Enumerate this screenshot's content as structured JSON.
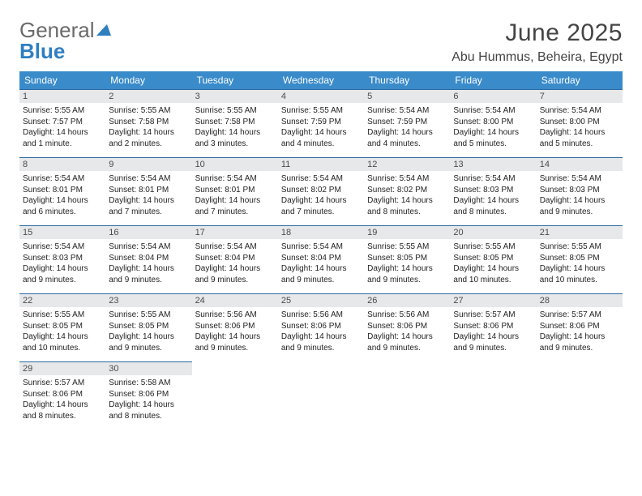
{
  "logo": {
    "general": "General",
    "blue": "Blue"
  },
  "title": "June 2025",
  "location": "Abu Hummus, Beheira, Egypt",
  "colors": {
    "header_bg": "#3a8bca",
    "header_text": "#ffffff",
    "daynum_bg": "#e7e8ea",
    "daynum_border": "#2c6aa0",
    "body_text": "#222222",
    "title_text": "#444444",
    "logo_gray": "#6a6a6a",
    "logo_blue": "#2f7fc1"
  },
  "weekdays": [
    "Sunday",
    "Monday",
    "Tuesday",
    "Wednesday",
    "Thursday",
    "Friday",
    "Saturday"
  ],
  "days": [
    {
      "n": "1",
      "sunrise": "Sunrise: 5:55 AM",
      "sunset": "Sunset: 7:57 PM",
      "day1": "Daylight: 14 hours",
      "day2": "and 1 minute."
    },
    {
      "n": "2",
      "sunrise": "Sunrise: 5:55 AM",
      "sunset": "Sunset: 7:58 PM",
      "day1": "Daylight: 14 hours",
      "day2": "and 2 minutes."
    },
    {
      "n": "3",
      "sunrise": "Sunrise: 5:55 AM",
      "sunset": "Sunset: 7:58 PM",
      "day1": "Daylight: 14 hours",
      "day2": "and 3 minutes."
    },
    {
      "n": "4",
      "sunrise": "Sunrise: 5:55 AM",
      "sunset": "Sunset: 7:59 PM",
      "day1": "Daylight: 14 hours",
      "day2": "and 4 minutes."
    },
    {
      "n": "5",
      "sunrise": "Sunrise: 5:54 AM",
      "sunset": "Sunset: 7:59 PM",
      "day1": "Daylight: 14 hours",
      "day2": "and 4 minutes."
    },
    {
      "n": "6",
      "sunrise": "Sunrise: 5:54 AM",
      "sunset": "Sunset: 8:00 PM",
      "day1": "Daylight: 14 hours",
      "day2": "and 5 minutes."
    },
    {
      "n": "7",
      "sunrise": "Sunrise: 5:54 AM",
      "sunset": "Sunset: 8:00 PM",
      "day1": "Daylight: 14 hours",
      "day2": "and 5 minutes."
    },
    {
      "n": "8",
      "sunrise": "Sunrise: 5:54 AM",
      "sunset": "Sunset: 8:01 PM",
      "day1": "Daylight: 14 hours",
      "day2": "and 6 minutes."
    },
    {
      "n": "9",
      "sunrise": "Sunrise: 5:54 AM",
      "sunset": "Sunset: 8:01 PM",
      "day1": "Daylight: 14 hours",
      "day2": "and 7 minutes."
    },
    {
      "n": "10",
      "sunrise": "Sunrise: 5:54 AM",
      "sunset": "Sunset: 8:01 PM",
      "day1": "Daylight: 14 hours",
      "day2": "and 7 minutes."
    },
    {
      "n": "11",
      "sunrise": "Sunrise: 5:54 AM",
      "sunset": "Sunset: 8:02 PM",
      "day1": "Daylight: 14 hours",
      "day2": "and 7 minutes."
    },
    {
      "n": "12",
      "sunrise": "Sunrise: 5:54 AM",
      "sunset": "Sunset: 8:02 PM",
      "day1": "Daylight: 14 hours",
      "day2": "and 8 minutes."
    },
    {
      "n": "13",
      "sunrise": "Sunrise: 5:54 AM",
      "sunset": "Sunset: 8:03 PM",
      "day1": "Daylight: 14 hours",
      "day2": "and 8 minutes."
    },
    {
      "n": "14",
      "sunrise": "Sunrise: 5:54 AM",
      "sunset": "Sunset: 8:03 PM",
      "day1": "Daylight: 14 hours",
      "day2": "and 9 minutes."
    },
    {
      "n": "15",
      "sunrise": "Sunrise: 5:54 AM",
      "sunset": "Sunset: 8:03 PM",
      "day1": "Daylight: 14 hours",
      "day2": "and 9 minutes."
    },
    {
      "n": "16",
      "sunrise": "Sunrise: 5:54 AM",
      "sunset": "Sunset: 8:04 PM",
      "day1": "Daylight: 14 hours",
      "day2": "and 9 minutes."
    },
    {
      "n": "17",
      "sunrise": "Sunrise: 5:54 AM",
      "sunset": "Sunset: 8:04 PM",
      "day1": "Daylight: 14 hours",
      "day2": "and 9 minutes."
    },
    {
      "n": "18",
      "sunrise": "Sunrise: 5:54 AM",
      "sunset": "Sunset: 8:04 PM",
      "day1": "Daylight: 14 hours",
      "day2": "and 9 minutes."
    },
    {
      "n": "19",
      "sunrise": "Sunrise: 5:55 AM",
      "sunset": "Sunset: 8:05 PM",
      "day1": "Daylight: 14 hours",
      "day2": "and 9 minutes."
    },
    {
      "n": "20",
      "sunrise": "Sunrise: 5:55 AM",
      "sunset": "Sunset: 8:05 PM",
      "day1": "Daylight: 14 hours",
      "day2": "and 10 minutes."
    },
    {
      "n": "21",
      "sunrise": "Sunrise: 5:55 AM",
      "sunset": "Sunset: 8:05 PM",
      "day1": "Daylight: 14 hours",
      "day2": "and 10 minutes."
    },
    {
      "n": "22",
      "sunrise": "Sunrise: 5:55 AM",
      "sunset": "Sunset: 8:05 PM",
      "day1": "Daylight: 14 hours",
      "day2": "and 10 minutes."
    },
    {
      "n": "23",
      "sunrise": "Sunrise: 5:55 AM",
      "sunset": "Sunset: 8:05 PM",
      "day1": "Daylight: 14 hours",
      "day2": "and 9 minutes."
    },
    {
      "n": "24",
      "sunrise": "Sunrise: 5:56 AM",
      "sunset": "Sunset: 8:06 PM",
      "day1": "Daylight: 14 hours",
      "day2": "and 9 minutes."
    },
    {
      "n": "25",
      "sunrise": "Sunrise: 5:56 AM",
      "sunset": "Sunset: 8:06 PM",
      "day1": "Daylight: 14 hours",
      "day2": "and 9 minutes."
    },
    {
      "n": "26",
      "sunrise": "Sunrise: 5:56 AM",
      "sunset": "Sunset: 8:06 PM",
      "day1": "Daylight: 14 hours",
      "day2": "and 9 minutes."
    },
    {
      "n": "27",
      "sunrise": "Sunrise: 5:57 AM",
      "sunset": "Sunset: 8:06 PM",
      "day1": "Daylight: 14 hours",
      "day2": "and 9 minutes."
    },
    {
      "n": "28",
      "sunrise": "Sunrise: 5:57 AM",
      "sunset": "Sunset: 8:06 PM",
      "day1": "Daylight: 14 hours",
      "day2": "and 9 minutes."
    },
    {
      "n": "29",
      "sunrise": "Sunrise: 5:57 AM",
      "sunset": "Sunset: 8:06 PM",
      "day1": "Daylight: 14 hours",
      "day2": "and 8 minutes."
    },
    {
      "n": "30",
      "sunrise": "Sunrise: 5:58 AM",
      "sunset": "Sunset: 8:06 PM",
      "day1": "Daylight: 14 hours",
      "day2": "and 8 minutes."
    }
  ]
}
